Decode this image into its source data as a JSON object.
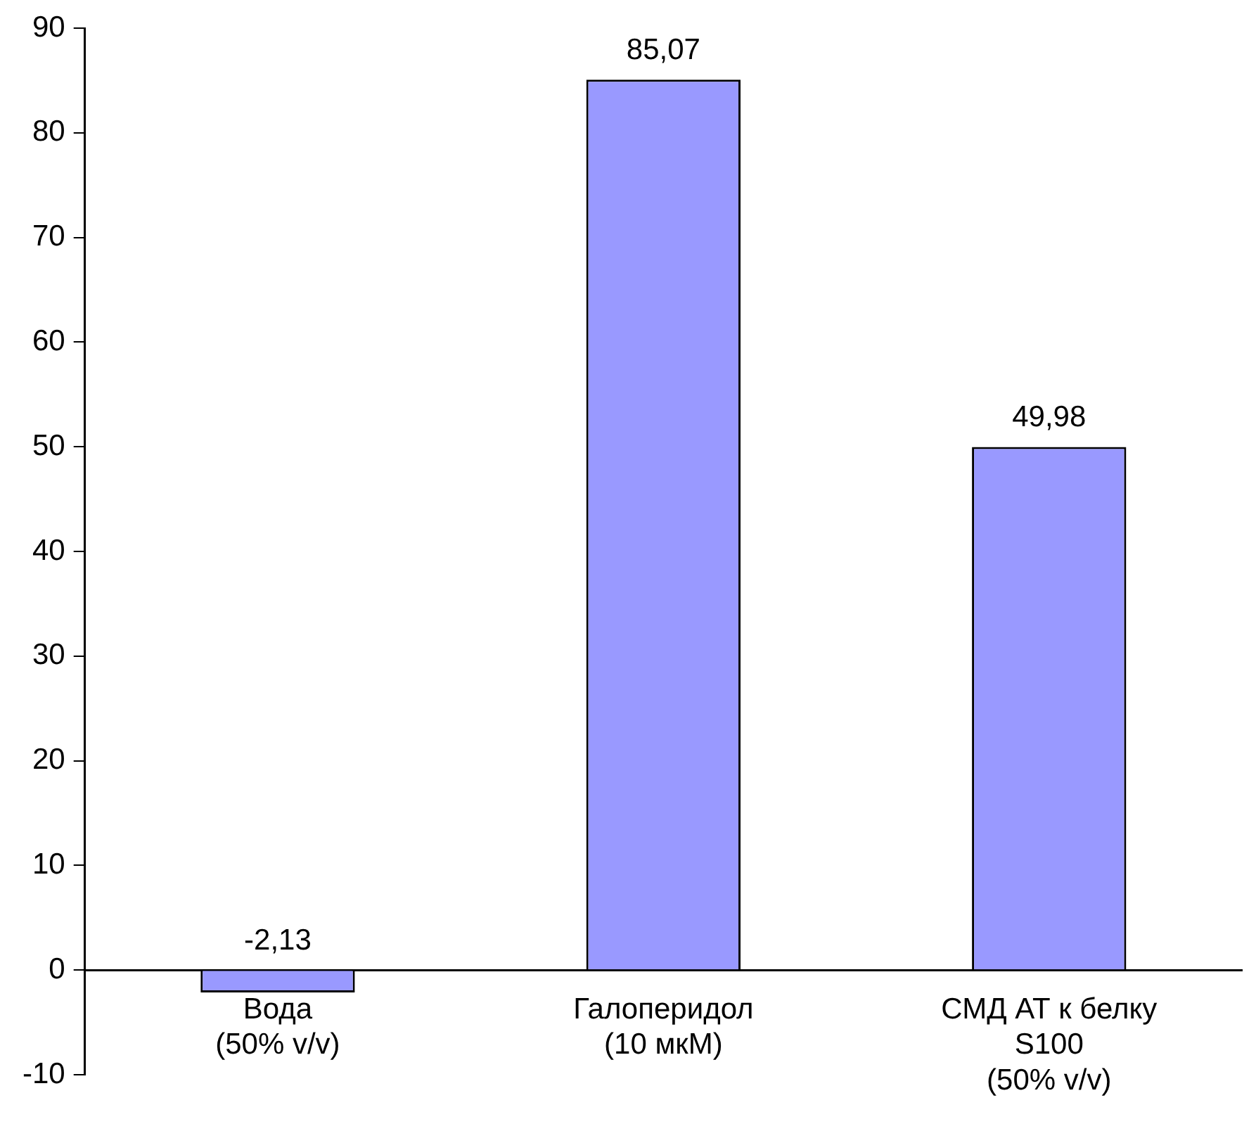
{
  "chart_data": {
    "type": "bar",
    "categories": [
      "Вода\n(50% v/v)",
      "Галоперидол\n(10 мкМ)",
      "СМД АТ к белку\nS100\n(50% v/v)"
    ],
    "values": [
      -2.13,
      85.07,
      49.98
    ],
    "value_labels": [
      "-2,13",
      "85,07",
      "49,98"
    ],
    "color": "#9999ff",
    "ylim": [
      -10,
      90
    ],
    "yticks": [
      -10,
      0,
      10,
      20,
      30,
      40,
      50,
      60,
      70,
      80,
      90
    ],
    "grid": false,
    "legend": false
  }
}
